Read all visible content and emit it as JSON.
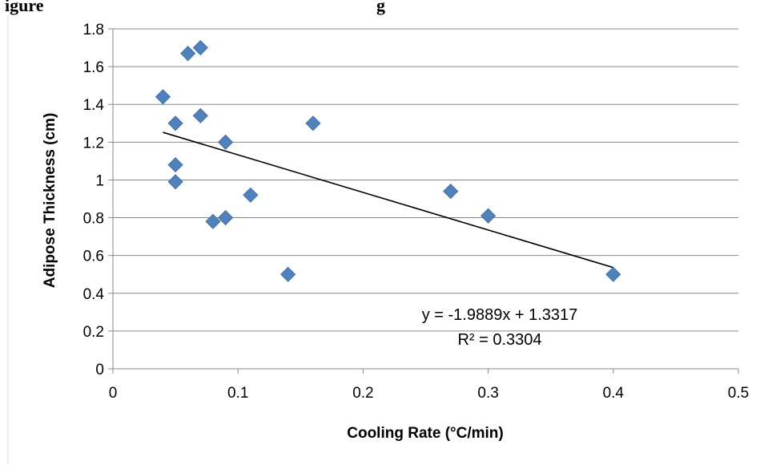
{
  "chart_data": {
    "type": "scatter",
    "title": "",
    "top_caption_partial": "igure",
    "top_caption_partial_right": "g",
    "xlabel": "Cooling Rate (°C/min)",
    "ylabel": "Adipose Thickness (cm)",
    "xlim": [
      0,
      0.5
    ],
    "ylim": [
      0,
      1.8
    ],
    "x_ticks": [
      "0",
      "0.1",
      "0.2",
      "0.3",
      "0.4",
      "0.5"
    ],
    "y_ticks": [
      "0",
      "0.2",
      "0.4",
      "0.6",
      "0.8",
      "1",
      "1.2",
      "1.4",
      "1.6",
      "1.8"
    ],
    "grid": true,
    "marker_color": "#4F81BD",
    "series": [
      {
        "points": [
          {
            "x": 0.04,
            "y": 1.44
          },
          {
            "x": 0.05,
            "y": 1.3
          },
          {
            "x": 0.05,
            "y": 1.08
          },
          {
            "x": 0.05,
            "y": 0.99
          },
          {
            "x": 0.06,
            "y": 1.67
          },
          {
            "x": 0.07,
            "y": 1.7
          },
          {
            "x": 0.07,
            "y": 1.34
          },
          {
            "x": 0.08,
            "y": 0.78
          },
          {
            "x": 0.09,
            "y": 1.2
          },
          {
            "x": 0.09,
            "y": 0.8
          },
          {
            "x": 0.11,
            "y": 0.92
          },
          {
            "x": 0.14,
            "y": 0.5
          },
          {
            "x": 0.16,
            "y": 1.3
          },
          {
            "x": 0.27,
            "y": 0.94
          },
          {
            "x": 0.3,
            "y": 0.81
          },
          {
            "x": 0.4,
            "y": 0.5
          }
        ]
      }
    ],
    "trendline": {
      "slope": -1.9889,
      "intercept": 1.3317,
      "x_start": 0.04,
      "x_end": 0.4,
      "equation_label": "y = -1.9889x + 1.3317",
      "r2_label": "R² = 0.3304"
    }
  }
}
